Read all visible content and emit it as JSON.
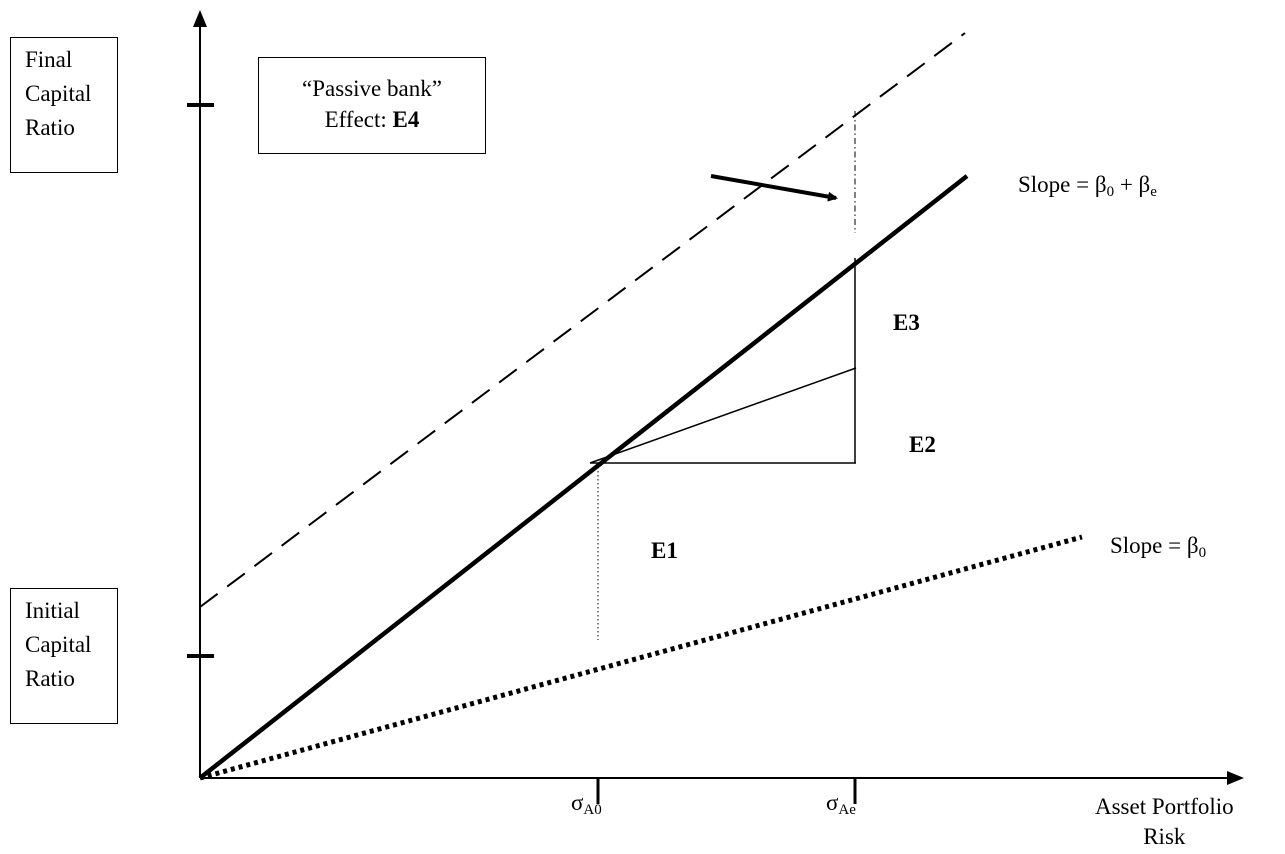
{
  "y_axis": {
    "label_final": [
      "Final",
      "Capital",
      "Ratio"
    ],
    "label_initial": [
      "Initial",
      "Capital",
      "Ratio"
    ]
  },
  "x_axis": {
    "label": [
      "Asset Portfolio",
      "Risk"
    ],
    "tick_sigma_a0": {
      "symbol": "σ",
      "sub": "A0"
    },
    "tick_sigma_ae": {
      "symbol": "σ",
      "sub": "Ae"
    }
  },
  "callout": {
    "line1": "“Passive bank”",
    "line2_prefix": "Effect: ",
    "line2_bold": "E4"
  },
  "effects": {
    "e1": "E1",
    "e2": "E2",
    "e3": "E3"
  },
  "slopes": {
    "top": {
      "prefix": "Slope = β",
      "sub1": "0",
      "mid": " + β",
      "sub2": "e"
    },
    "bottom": {
      "prefix": "Slope = β",
      "sub1": "0"
    }
  },
  "colors": {
    "ink": "#000000",
    "background": "#ffffff"
  }
}
